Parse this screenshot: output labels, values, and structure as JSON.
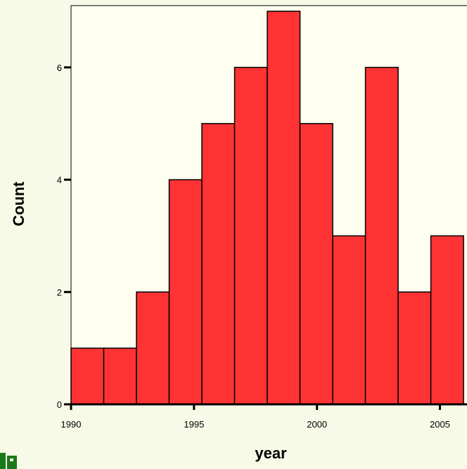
{
  "chart_data": {
    "type": "bar",
    "subtype": "histogram",
    "xlabel": "year",
    "ylabel": "Count",
    "bin_start": 1990.0,
    "bin_width": 1.33,
    "values": [
      1,
      1,
      2,
      4,
      5,
      6,
      7,
      5,
      3,
      6,
      2,
      3
    ],
    "x_ticks": [
      1990,
      1995,
      2000,
      2005
    ],
    "y_ticks": [
      0,
      2,
      4,
      6
    ],
    "xlim": [
      1990,
      2006.1
    ],
    "ylim": [
      0,
      7.1
    ],
    "grid": false,
    "legend": "none",
    "colors": {
      "bar_fill": "#ff3333",
      "bar_stroke": "#000000",
      "plot_background": "#fffff0",
      "page_background": "#f7fae6"
    }
  },
  "decor": {
    "logo_color": "#1a7a1a",
    "logo_icon": "partial-green-logo-icon"
  }
}
